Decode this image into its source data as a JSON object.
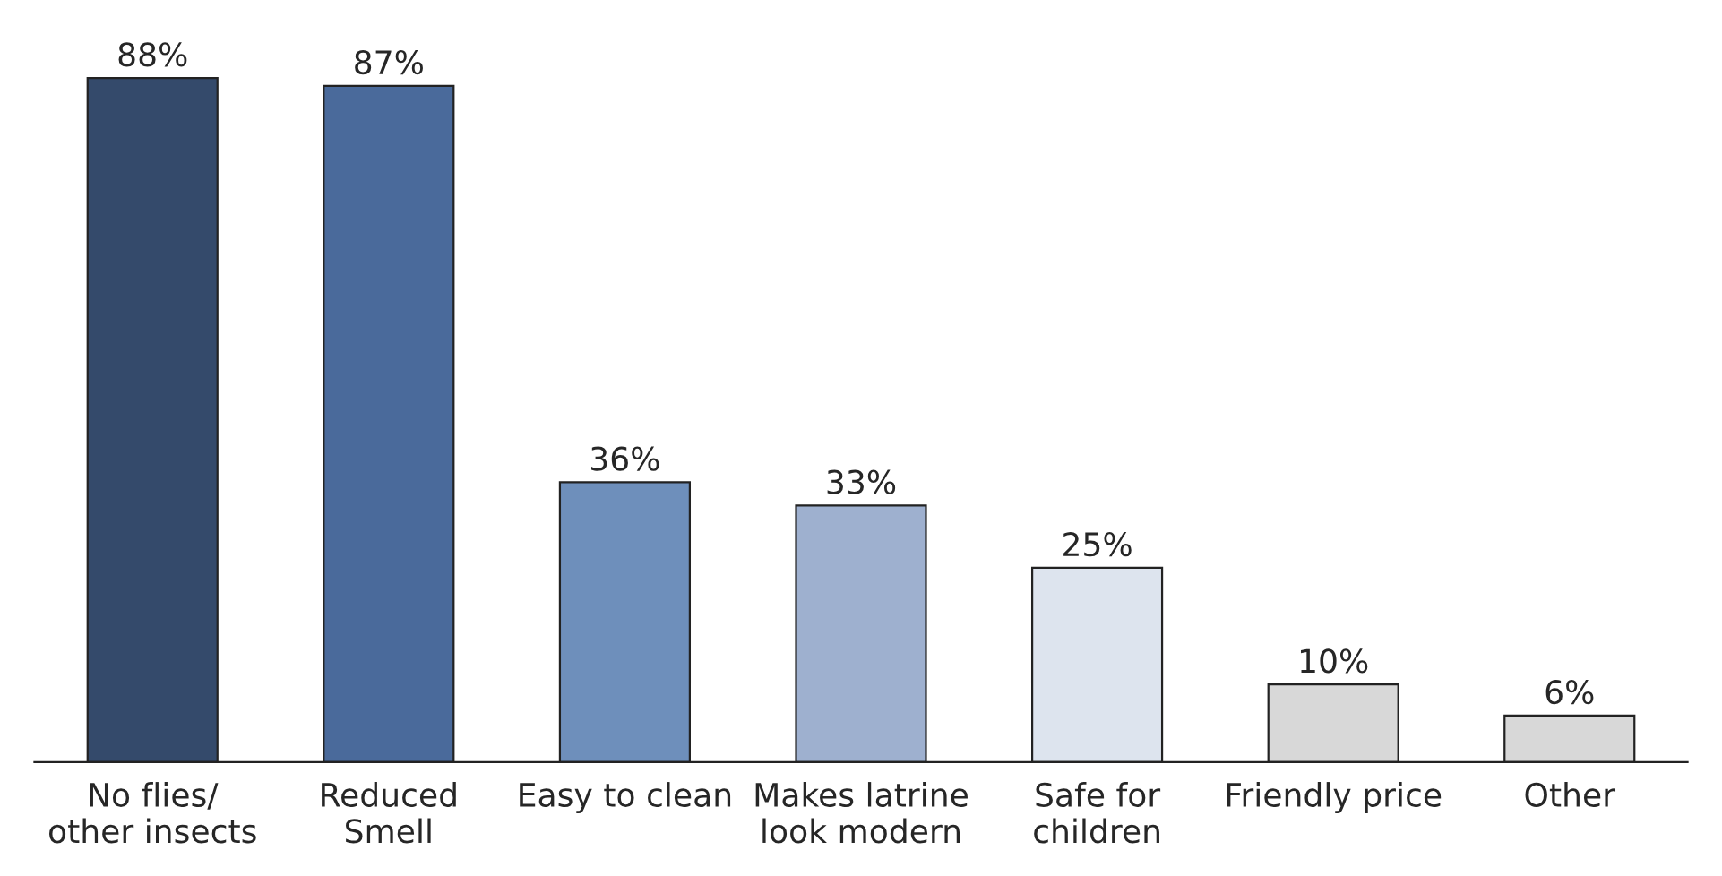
{
  "chart_data": {
    "type": "bar",
    "categories": [
      "No flies/\nother insects",
      "Reduced\nSmell",
      "Easy to clean",
      "Makes latrine\nlook modern",
      "Safe for\nchildren",
      "Friendly price",
      "Other"
    ],
    "values": [
      88,
      87,
      36,
      33,
      25,
      10,
      6
    ],
    "value_labels": [
      "88%",
      "87%",
      "36%",
      "33%",
      "25%",
      "10%",
      "6%"
    ],
    "colors": [
      "#344a6b",
      "#4a6a9b",
      "#6e8fbb",
      "#9eb0cf",
      "#dde4ee",
      "#d8d8d8",
      "#d8d8d8"
    ],
    "grid": false,
    "legend": false
  }
}
